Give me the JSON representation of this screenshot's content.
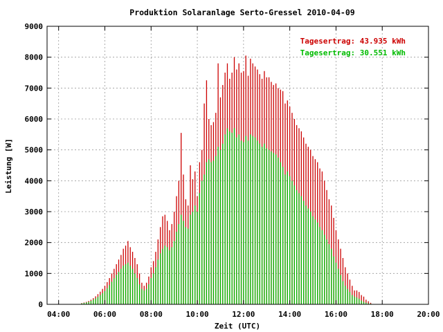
{
  "chart_data": {
    "type": "bar",
    "title": "Produktion Solaranlage Serto-Gressel 2010-04-09",
    "xlabel": "Zeit (UTC)",
    "ylabel": "Leistung [W]",
    "xlim": [
      3.5,
      20
    ],
    "ylim": [
      0,
      9000
    ],
    "xticks": [
      "04:00",
      "06:00",
      "08:00",
      "10:00",
      "12:00",
      "14:00",
      "16:00",
      "18:00",
      "20:00"
    ],
    "yticks": [
      "0",
      "1000",
      "2000",
      "3000",
      "4000",
      "5000",
      "6000",
      "7000",
      "8000",
      "9000"
    ],
    "grid": true,
    "legend_position": "top-right",
    "series": [
      {
        "name": "Tagesertrag: 43.935 kWh",
        "color": "#cc0000",
        "x": [
          5.0,
          5.1,
          5.2,
          5.3,
          5.4,
          5.5,
          5.6,
          5.7,
          5.8,
          5.9,
          6.0,
          6.1,
          6.2,
          6.3,
          6.4,
          6.5,
          6.6,
          6.7,
          6.8,
          6.9,
          7.0,
          7.1,
          7.2,
          7.3,
          7.4,
          7.5,
          7.6,
          7.7,
          7.8,
          7.9,
          8.0,
          8.1,
          8.2,
          8.3,
          8.4,
          8.5,
          8.6,
          8.7,
          8.8,
          8.9,
          9.0,
          9.1,
          9.2,
          9.3,
          9.4,
          9.5,
          9.6,
          9.7,
          9.8,
          9.9,
          10.0,
          10.1,
          10.2,
          10.3,
          10.4,
          10.5,
          10.6,
          10.7,
          10.8,
          10.9,
          11.0,
          11.1,
          11.2,
          11.3,
          11.4,
          11.5,
          11.6,
          11.7,
          11.8,
          11.9,
          12.0,
          12.1,
          12.2,
          12.3,
          12.4,
          12.5,
          12.6,
          12.7,
          12.8,
          12.9,
          13.0,
          13.1,
          13.2,
          13.3,
          13.4,
          13.5,
          13.6,
          13.7,
          13.8,
          13.9,
          14.0,
          14.1,
          14.2,
          14.3,
          14.4,
          14.5,
          14.6,
          14.7,
          14.8,
          14.9,
          15.0,
          15.1,
          15.2,
          15.3,
          15.4,
          15.5,
          15.6,
          15.7,
          15.8,
          15.9,
          16.0,
          16.1,
          16.2,
          16.3,
          16.4,
          16.5,
          16.6,
          16.7,
          16.8,
          16.9,
          17.0,
          17.1,
          17.2,
          17.3,
          17.4,
          17.5
        ],
        "values": [
          40,
          60,
          80,
          110,
          150,
          200,
          260,
          330,
          410,
          500,
          600,
          720,
          850,
          1000,
          1150,
          1300,
          1450,
          1600,
          1800,
          1900,
          2050,
          1850,
          1700,
          1500,
          1300,
          1000,
          700,
          600,
          700,
          900,
          1200,
          1400,
          1700,
          2100,
          2500,
          2850,
          2900,
          2700,
          2400,
          2600,
          3000,
          3500,
          4000,
          5550,
          4200,
          3400,
          3200,
          4500,
          4050,
          4300,
          3500,
          4600,
          5000,
          6500,
          7250,
          6000,
          5800,
          5900,
          6200,
          7800,
          6700,
          7100,
          7500,
          7800,
          7300,
          7500,
          8000,
          7600,
          7800,
          7500,
          7550,
          8050,
          7400,
          7950,
          7800,
          7700,
          7600,
          7450,
          7300,
          7550,
          7350,
          7350,
          7200,
          7100,
          7150,
          7000,
          6950,
          6900,
          6500,
          6600,
          6400,
          6200,
          6000,
          5800,
          5700,
          5600,
          5400,
          5200,
          5100,
          5000,
          4800,
          4700,
          4600,
          4400,
          4300,
          4000,
          3700,
          3400,
          3200,
          2800,
          2400,
          2100,
          1800,
          1500,
          1200,
          1000,
          800,
          600,
          450,
          450,
          400,
          300,
          250,
          150,
          100,
          50
        ]
      },
      {
        "name": "Tagesertrag: 30.551 kWh",
        "color": "#00bb00",
        "x": [
          5.0,
          5.1,
          5.2,
          5.3,
          5.4,
          5.5,
          5.6,
          5.7,
          5.8,
          5.9,
          6.0,
          6.1,
          6.2,
          6.3,
          6.4,
          6.5,
          6.6,
          6.7,
          6.8,
          6.9,
          7.0,
          7.1,
          7.2,
          7.3,
          7.4,
          7.5,
          7.6,
          7.7,
          7.8,
          7.9,
          8.0,
          8.1,
          8.2,
          8.3,
          8.4,
          8.5,
          8.6,
          8.7,
          8.8,
          8.9,
          9.0,
          9.1,
          9.2,
          9.3,
          9.4,
          9.5,
          9.6,
          9.7,
          9.8,
          9.9,
          10.0,
          10.1,
          10.2,
          10.3,
          10.4,
          10.5,
          10.6,
          10.7,
          10.8,
          10.9,
          11.0,
          11.1,
          11.2,
          11.3,
          11.4,
          11.5,
          11.6,
          11.7,
          11.8,
          11.9,
          12.0,
          12.1,
          12.2,
          12.3,
          12.4,
          12.5,
          12.6,
          12.7,
          12.8,
          12.9,
          13.0,
          13.1,
          13.2,
          13.3,
          13.4,
          13.5,
          13.6,
          13.7,
          13.8,
          13.9,
          14.0,
          14.1,
          14.2,
          14.3,
          14.4,
          14.5,
          14.6,
          14.7,
          14.8,
          14.9,
          15.0,
          15.1,
          15.2,
          15.3,
          15.4,
          15.5,
          15.6,
          15.7,
          15.8,
          15.9,
          16.0,
          16.1,
          16.2,
          16.3,
          16.4,
          16.5,
          16.6,
          16.7,
          16.8,
          16.9,
          17.0,
          17.1,
          17.2,
          17.3,
          17.4,
          17.5
        ],
        "values": [
          30,
          45,
          60,
          80,
          110,
          150,
          190,
          240,
          300,
          360,
          430,
          520,
          620,
          730,
          840,
          950,
          1050,
          1150,
          1250,
          1300,
          1350,
          1250,
          1150,
          1000,
          850,
          650,
          500,
          450,
          500,
          650,
          850,
          1000,
          1200,
          1450,
          1650,
          1800,
          1900,
          1850,
          1750,
          1850,
          2050,
          2350,
          2600,
          2900,
          2700,
          2500,
          2450,
          2900,
          3000,
          3200,
          3000,
          3600,
          4000,
          4200,
          4600,
          4700,
          4600,
          4650,
          4800,
          5100,
          5000,
          5200,
          5500,
          5700,
          5600,
          5550,
          5700,
          5400,
          5500,
          5300,
          5250,
          5450,
          5300,
          5500,
          5450,
          5400,
          5300,
          5200,
          5100,
          5200,
          5050,
          5000,
          4950,
          4900,
          4850,
          4750,
          4600,
          4450,
          4200,
          4300,
          4150,
          4000,
          3850,
          3700,
          3600,
          3500,
          3350,
          3200,
          3100,
          3000,
          2850,
          2750,
          2650,
          2500,
          2400,
          2250,
          2100,
          1950,
          1800,
          1550,
          1350,
          1150,
          950,
          750,
          600,
          500,
          400,
          300,
          250,
          220,
          180,
          120,
          80,
          50,
          30,
          20
        ]
      }
    ]
  }
}
